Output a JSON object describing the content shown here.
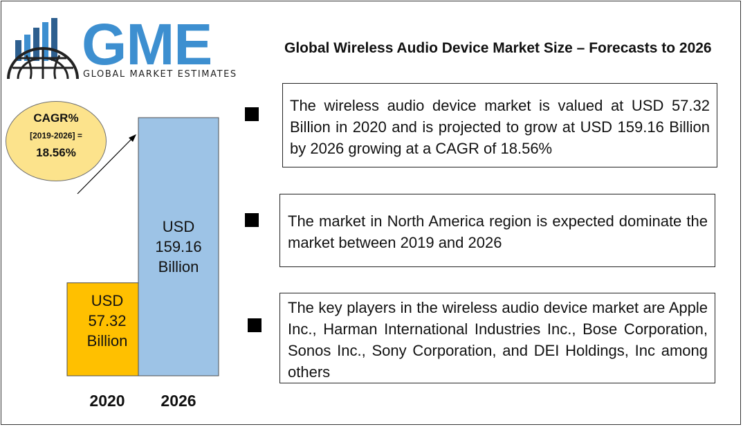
{
  "logo": {
    "text": "GME",
    "subtitle": "GLOBAL MARKET ESTIMATES",
    "color": "#3d8fd0"
  },
  "title": "Global Wireless Audio Device Market Size – Forecasts to 2026",
  "cagr": {
    "label": "CAGR%",
    "period": "[2019-2026] =",
    "value": "18.56%",
    "fill": "#fce38c"
  },
  "chart_data": {
    "type": "bar",
    "categories": [
      "2020",
      "2026"
    ],
    "values": [
      57.32,
      159.16
    ],
    "bar_labels": [
      [
        "USD",
        "57.32",
        "Billion"
      ],
      [
        "USD",
        "159.16",
        "Billion"
      ]
    ],
    "colors": [
      "#ffc000",
      "#9dc3e6"
    ],
    "title": "",
    "xlabel": "",
    "ylabel": "",
    "ylim": [
      0,
      159.16
    ]
  },
  "points": [
    {
      "text": "The wireless audio device market is valued at USD 57.32 Billion in 2020 and is projected to grow at USD 159.16 Billion by 2026 growing at a CAGR of 18.56%"
    },
    {
      "text": "The market in North America region is expected dominate the market between 2019 and 2026"
    },
    {
      "text": "The key players in the wireless audio device market are Apple Inc., Harman International Industries Inc., Bose Corporation, Sonos Inc., Sony Corporation, and DEI Holdings, Inc among others"
    }
  ]
}
